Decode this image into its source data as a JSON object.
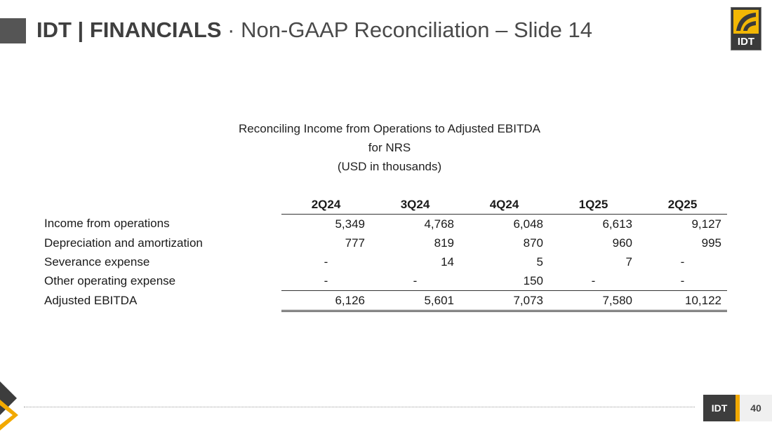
{
  "header": {
    "title_bold": "IDT | FINANCIALS",
    "title_sep": "·",
    "title_rest": "Non-GAAP Reconciliation – Slide 14",
    "logo_text": "IDT",
    "logo_icon": "idt-logo-icon"
  },
  "table_heading": {
    "line1": "Reconciling Income from Operations to Adjusted EBITDA",
    "line2": "for NRS",
    "line3": "(USD in thousands)"
  },
  "table": {
    "columns": [
      "2Q24",
      "3Q24",
      "4Q24",
      "1Q25",
      "2Q25"
    ],
    "rows": [
      {
        "label": "Income from operations",
        "values": [
          "5,349",
          "4,768",
          "6,048",
          "6,613",
          "9,127"
        ]
      },
      {
        "label": "Depreciation and amortization",
        "values": [
          "777",
          "819",
          "870",
          "960",
          "995"
        ]
      },
      {
        "label": "Severance expense",
        "values": [
          "-",
          "14",
          "5",
          "7",
          "-"
        ]
      },
      {
        "label": "Other operating expense",
        "values": [
          "-",
          "-",
          "150",
          "-",
          "-"
        ]
      },
      {
        "label": "Adjusted EBITDA",
        "values": [
          "6,126",
          "5,601",
          "7,073",
          "7,580",
          "10,122"
        ]
      }
    ]
  },
  "footer": {
    "brand": "IDT",
    "page_number": "40"
  },
  "colors": {
    "accent": "#f2a900",
    "dark": "#3d3d3d"
  }
}
